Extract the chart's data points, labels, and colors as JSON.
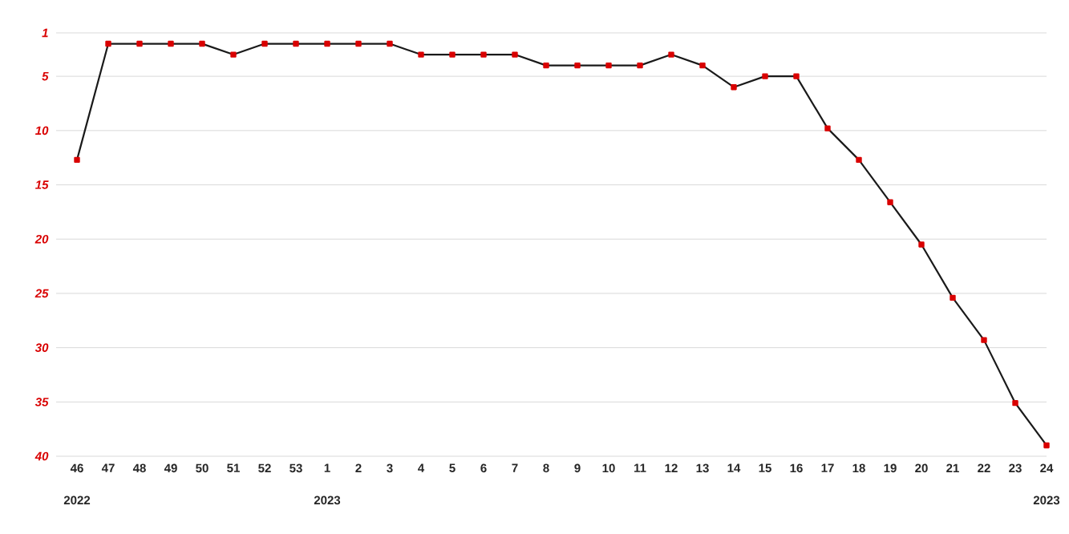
{
  "chart_data": {
    "type": "line",
    "categories": [
      "46",
      "47",
      "48",
      "49",
      "50",
      "51",
      "52",
      "53",
      "1",
      "2",
      "3",
      "4",
      "5",
      "6",
      "7",
      "8",
      "9",
      "10",
      "11",
      "12",
      "13",
      "14",
      "15",
      "16",
      "17",
      "18",
      "19",
      "20",
      "21",
      "22",
      "23",
      "24"
    ],
    "series": [
      {
        "color": "#1a1a1a",
        "values": [
          12.7,
          2,
          2,
          2,
          2,
          3,
          2,
          2,
          2,
          2,
          2,
          3,
          3,
          3,
          3,
          4,
          4,
          4,
          4,
          3,
          4,
          6,
          5,
          5,
          9.8,
          12.7,
          16.6,
          20.5,
          25.4,
          29.3,
          35.1,
          39.0
        ]
      }
    ],
    "ylim": [
      40,
      1
    ],
    "yticks": [
      1,
      5,
      10,
      15,
      20,
      25,
      30,
      35,
      40
    ],
    "grid": "y",
    "marker": "square",
    "line_style": "solid",
    "annotations": [
      "2022",
      "2023",
      "2023"
    ]
  }
}
